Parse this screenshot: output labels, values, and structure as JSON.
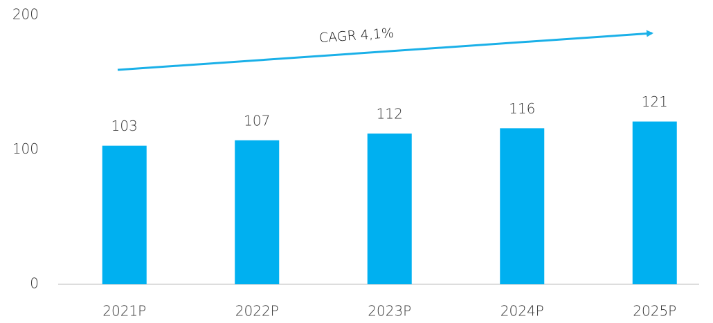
{
  "chart_data": {
    "type": "bar",
    "categories": [
      "2021P",
      "2022P",
      "2023P",
      "2024P",
      "2025P"
    ],
    "values": [
      103,
      107,
      112,
      116,
      121
    ],
    "color": "#00b0f0",
    "ylim": [
      0,
      200
    ],
    "yticks": [
      0,
      100,
      200
    ],
    "grid": false,
    "annotation": "CAGR 4,1%"
  }
}
